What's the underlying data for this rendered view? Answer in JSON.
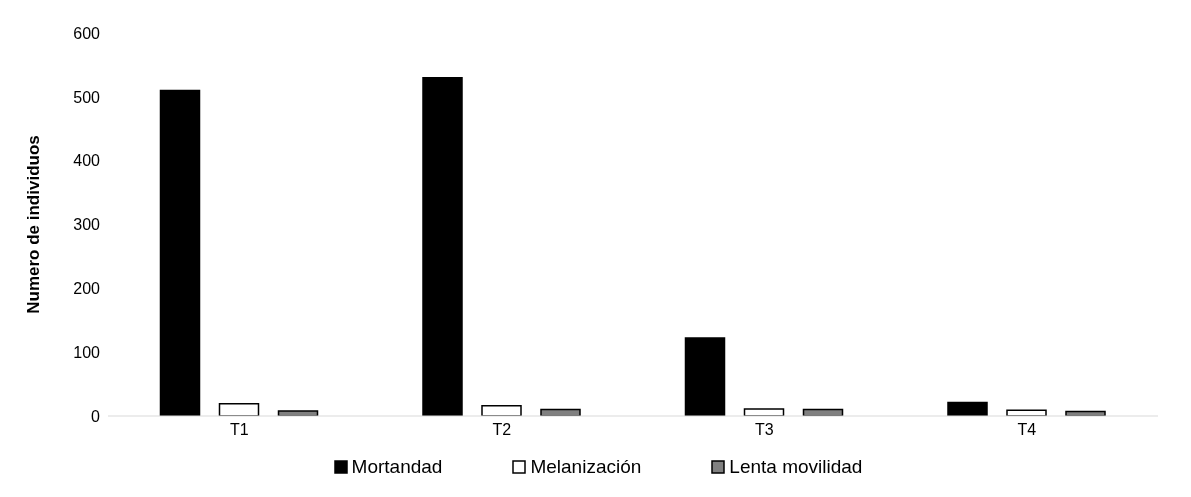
{
  "chart_data": {
    "type": "bar",
    "ylabel": "Numero  de individuos",
    "categories": [
      "T1",
      "T2",
      "T3",
      "T4"
    ],
    "series": [
      {
        "name": "Mortandad",
        "color": "#000000",
        "values": [
          510,
          530,
          122,
          21
        ]
      },
      {
        "name": "Melanización",
        "color": "#ffffff",
        "values": [
          19,
          16,
          11,
          9
        ]
      },
      {
        "name": "Lenta movilidad",
        "color": "#808080",
        "values": [
          8,
          10,
          10,
          7
        ]
      }
    ],
    "ylim": [
      0,
      600
    ],
    "yticks": [
      0,
      100,
      200,
      300,
      400,
      500,
      600
    ],
    "grid": false,
    "legend": "bottom"
  }
}
